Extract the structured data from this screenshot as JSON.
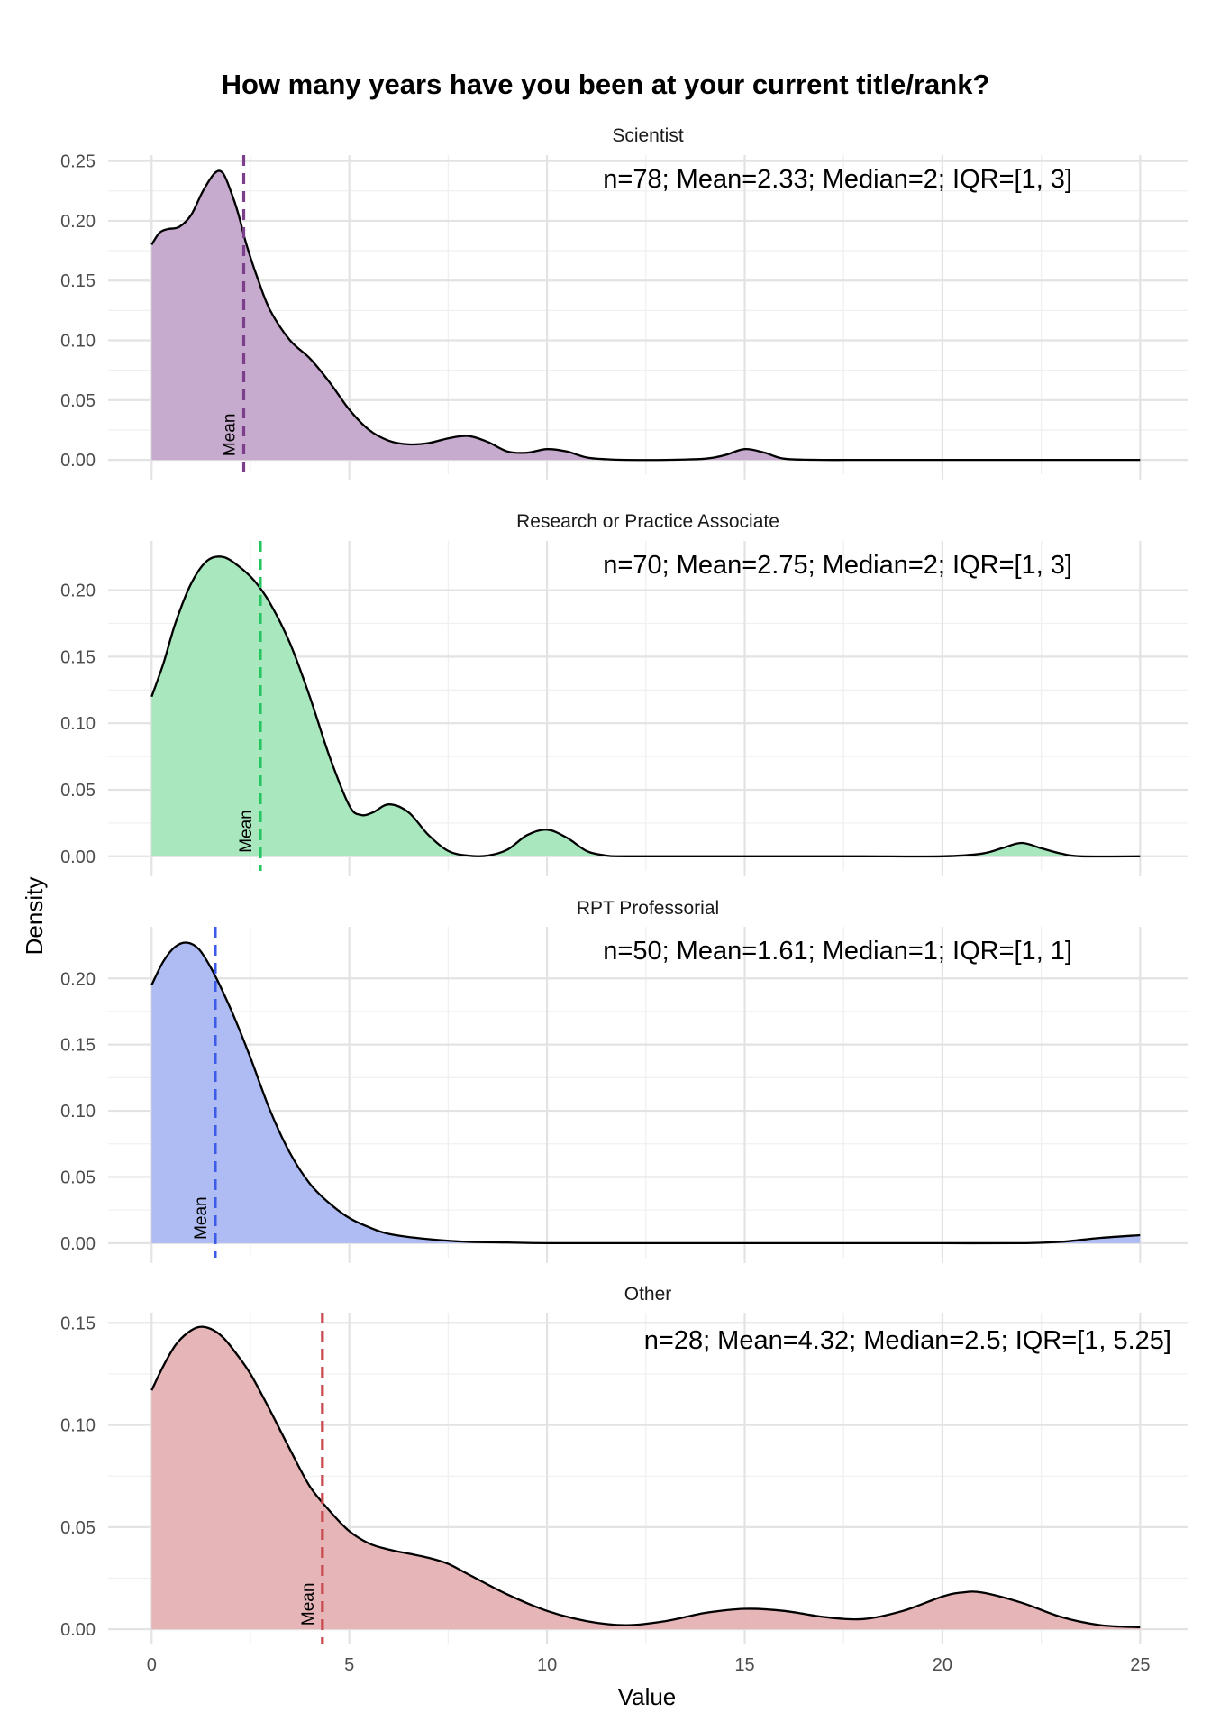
{
  "chart_data": {
    "type": "area",
    "title": "How many years have you been at your current title/rank?",
    "xlabel": "Value",
    "ylabel": "Density",
    "xlim": [
      -1.1,
      26.2
    ],
    "x_ticks": [
      0,
      5,
      10,
      15,
      20,
      25
    ],
    "x_tick_labels": [
      "0",
      "5",
      "10",
      "15",
      "20",
      "25"
    ],
    "grid": true,
    "mean_label": "Mean",
    "panels": [
      {
        "name": "Scientist",
        "color": "#7B3F8C",
        "fill": "#C4A6CB",
        "n": 78,
        "mean": 2.33,
        "median": 2,
        "iqr": [
          1,
          3
        ],
        "stats_label": "n=78; Mean=2.33; Median=2; IQR=[1, 3]",
        "ylim": [
          -0.012,
          0.255
        ],
        "y_ticks": [
          0.0,
          0.05,
          0.1,
          0.15,
          0.2,
          0.25
        ],
        "y_tick_labels": [
          "0.00",
          "0.05",
          "0.10",
          "0.15",
          "0.20",
          "0.25"
        ],
        "x": [
          0,
          0.2,
          0.4,
          0.7,
          1.0,
          1.3,
          1.6,
          1.8,
          2.0,
          2.2,
          2.4,
          2.7,
          3.0,
          3.5,
          4.0,
          4.5,
          5.0,
          5.5,
          6.0,
          6.5,
          7.0,
          7.5,
          8.0,
          8.5,
          9.0,
          9.5,
          10.0,
          10.5,
          11.0,
          11.5,
          12.0,
          13.0,
          14.0,
          14.5,
          15.0,
          15.5,
          16.0,
          17.0,
          18.0,
          20.0,
          22.0,
          25.0
        ],
        "y": [
          0.18,
          0.19,
          0.193,
          0.195,
          0.205,
          0.225,
          0.24,
          0.24,
          0.225,
          0.205,
          0.18,
          0.15,
          0.125,
          0.1,
          0.085,
          0.065,
          0.042,
          0.025,
          0.016,
          0.013,
          0.014,
          0.018,
          0.02,
          0.015,
          0.007,
          0.006,
          0.009,
          0.007,
          0.002,
          0.0005,
          0.0,
          0.0,
          0.001,
          0.004,
          0.009,
          0.006,
          0.001,
          0.0,
          0.0,
          0.0,
          0.0,
          0.0
        ]
      },
      {
        "name": "Research or Practice Associate",
        "color": "#22C55E",
        "fill": "#A4E6BC",
        "n": 70,
        "mean": 2.75,
        "median": 2,
        "iqr": [
          1,
          3
        ],
        "stats_label": "n=70; Mean=2.75; Median=2; IQR=[1, 3]",
        "ylim": [
          -0.011,
          0.237
        ],
        "y_ticks": [
          0.0,
          0.05,
          0.1,
          0.15,
          0.2
        ],
        "y_tick_labels": [
          "0.00",
          "0.05",
          "0.10",
          "0.15",
          "0.20"
        ],
        "x": [
          0,
          0.3,
          0.6,
          1.0,
          1.4,
          1.8,
          2.2,
          2.6,
          3.0,
          3.5,
          4.0,
          4.5,
          5.0,
          5.3,
          5.6,
          6.0,
          6.5,
          7.0,
          7.5,
          8.0,
          8.5,
          9.0,
          9.5,
          10.0,
          10.5,
          11.0,
          11.5,
          12.0,
          14.0,
          16.0,
          18.0,
          20.0,
          21.0,
          21.5,
          22.0,
          22.5,
          23.0,
          23.5,
          25.0
        ],
        "y": [
          0.12,
          0.145,
          0.175,
          0.205,
          0.222,
          0.225,
          0.218,
          0.207,
          0.19,
          0.16,
          0.12,
          0.075,
          0.038,
          0.031,
          0.033,
          0.039,
          0.033,
          0.016,
          0.004,
          0.0005,
          0.0005,
          0.005,
          0.016,
          0.02,
          0.014,
          0.004,
          0.0005,
          0.0,
          0.0,
          0.0,
          0.0,
          0.0,
          0.002,
          0.006,
          0.01,
          0.006,
          0.002,
          0.0,
          0.0
        ]
      },
      {
        "name": "RPT Professorial",
        "color": "#3B5BE8",
        "fill": "#AAB8F2",
        "n": 50,
        "mean": 1.61,
        "median": 1,
        "iqr": [
          1,
          1
        ],
        "stats_label": "n=50; Mean=1.61; Median=1; IQR=[1, 1]",
        "ylim": [
          -0.011,
          0.239
        ],
        "y_ticks": [
          0.0,
          0.05,
          0.1,
          0.15,
          0.2
        ],
        "y_tick_labels": [
          "0.00",
          "0.05",
          "0.10",
          "0.15",
          "0.20"
        ],
        "x": [
          0,
          0.3,
          0.6,
          0.9,
          1.2,
          1.5,
          1.8,
          2.1,
          2.5,
          3.0,
          3.5,
          4.0,
          4.5,
          5.0,
          5.5,
          6.0,
          7.0,
          8.0,
          9.0,
          10.0,
          12.0,
          15.0,
          18.0,
          20.0,
          22.0,
          23.0,
          24.0,
          25.0
        ],
        "y": [
          0.195,
          0.213,
          0.224,
          0.227,
          0.222,
          0.208,
          0.19,
          0.17,
          0.14,
          0.1,
          0.068,
          0.045,
          0.03,
          0.019,
          0.012,
          0.007,
          0.003,
          0.001,
          0.0005,
          0.0,
          0.0,
          0.0,
          0.0,
          0.0,
          0.0,
          0.001,
          0.004,
          0.006
        ]
      },
      {
        "name": "Other",
        "color": "#C94A4E",
        "fill": "#E4B1B3",
        "n": 28,
        "mean": 4.32,
        "median": 2.5,
        "iqr": [
          1,
          5.25
        ],
        "stats_label": "n=28; Mean=4.32; Median=2.5; IQR=[1, 5.25]",
        "ylim": [
          -0.007,
          0.155
        ],
        "y_ticks": [
          0.0,
          0.05,
          0.1,
          0.15
        ],
        "y_tick_labels": [
          "0.00",
          "0.05",
          "0.10",
          "0.15"
        ],
        "x": [
          0,
          0.3,
          0.6,
          0.9,
          1.2,
          1.5,
          1.8,
          2.1,
          2.5,
          3.0,
          3.5,
          4.0,
          4.5,
          5.0,
          5.5,
          6.0,
          6.5,
          7.0,
          7.5,
          8.0,
          9.0,
          10.0,
          11.0,
          12.0,
          13.0,
          14.0,
          15.0,
          16.0,
          17.0,
          18.0,
          19.0,
          20.0,
          20.5,
          21.0,
          22.0,
          23.0,
          24.0,
          25.0
        ],
        "y": [
          0.117,
          0.129,
          0.139,
          0.145,
          0.148,
          0.147,
          0.143,
          0.136,
          0.125,
          0.107,
          0.088,
          0.07,
          0.058,
          0.048,
          0.042,
          0.039,
          0.037,
          0.035,
          0.032,
          0.027,
          0.017,
          0.009,
          0.004,
          0.002,
          0.004,
          0.008,
          0.01,
          0.009,
          0.006,
          0.005,
          0.009,
          0.016,
          0.018,
          0.018,
          0.013,
          0.006,
          0.002,
          0.001
        ]
      }
    ]
  }
}
